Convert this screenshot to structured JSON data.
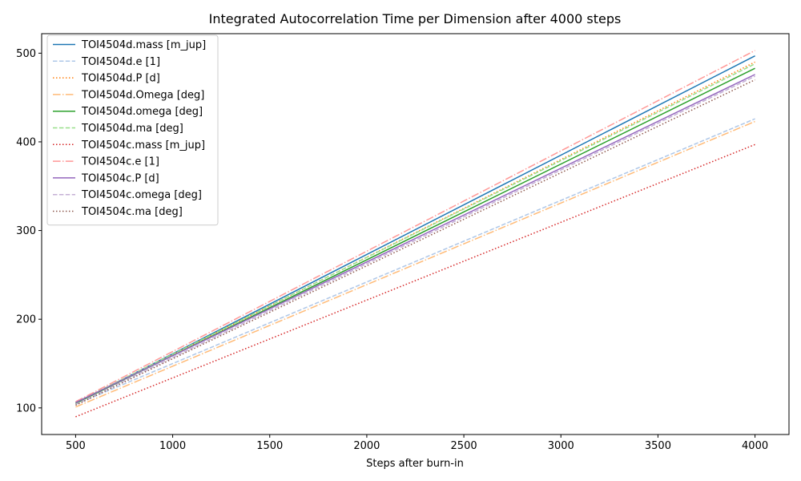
{
  "chart_data": {
    "type": "line",
    "title": "Integrated Autocorrelation Time per Dimension after 4000 steps",
    "xlabel": "Steps after burn-in",
    "ylabel": "",
    "xlim": [
      325,
      4175
    ],
    "ylim": [
      70,
      522
    ],
    "x_ticks": [
      "500",
      "1000",
      "1500",
      "2000",
      "2500",
      "3000",
      "3500",
      "4000"
    ],
    "y_ticks": [
      "100",
      "200",
      "300",
      "400",
      "500"
    ],
    "grid": false,
    "legend_position": "top-left",
    "x": [
      500,
      4000
    ],
    "series": [
      {
        "name": "TOI4504d.mass [m_jup]",
        "values": [
          105,
          497
        ],
        "color": "#1f77b4",
        "dash": "solid"
      },
      {
        "name": "TOI4504d.e [1]",
        "values": [
          104,
          426
        ],
        "color": "#aec7e8",
        "dash": "dashed"
      },
      {
        "name": "TOI4504d.P [d]",
        "values": [
          105,
          490
        ],
        "color": "#ff7f0e",
        "dash": "dotted"
      },
      {
        "name": "TOI4504d.Omega [deg]",
        "values": [
          101,
          423
        ],
        "color": "#ffbb78",
        "dash": "dashdot"
      },
      {
        "name": "TOI4504d.omega [deg]",
        "values": [
          105,
          483
        ],
        "color": "#2ca02c",
        "dash": "solid"
      },
      {
        "name": "TOI4504d.ma [deg]",
        "values": [
          106,
          488
        ],
        "color": "#98df8a",
        "dash": "dashed"
      },
      {
        "name": "TOI4504c.mass [m_jup]",
        "values": [
          90,
          397
        ],
        "color": "#d62728",
        "dash": "dotted"
      },
      {
        "name": "TOI4504c.e [1]",
        "values": [
          107,
          503
        ],
        "color": "#ff9896",
        "dash": "dashdot"
      },
      {
        "name": "TOI4504c.P [d]",
        "values": [
          106,
          476
        ],
        "color": "#9467bd",
        "dash": "solid"
      },
      {
        "name": "TOI4504c.omega [deg]",
        "values": [
          104,
          474
        ],
        "color": "#c5b0d5",
        "dash": "dashed"
      },
      {
        "name": "TOI4504c.ma [deg]",
        "values": [
          103,
          470
        ],
        "color": "#8c564b",
        "dash": "dotted"
      }
    ]
  }
}
